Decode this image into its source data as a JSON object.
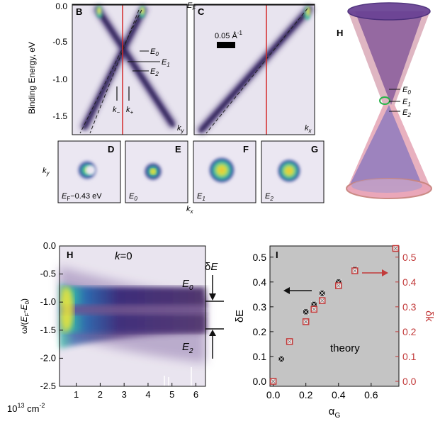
{
  "top": {
    "ylabel": "Binding Energy, eV",
    "ef_label": "E",
    "ef_sub": "F",
    "yticks": [
      "0.0",
      "-0.5",
      "-1.0",
      "-1.5"
    ],
    "panel_B": {
      "title": "B",
      "kaxis": "k",
      "kaxis_sub": "y",
      "levels": [
        {
          "main": "E",
          "sub": "0"
        },
        {
          "main": "E",
          "sub": "1"
        },
        {
          "main": "E",
          "sub": "2"
        }
      ],
      "kminus": {
        "main": "k",
        "sub": "−"
      },
      "kplus": {
        "main": "k",
        "sub": "+"
      }
    },
    "panel_C": {
      "title": "C",
      "kaxis": "k",
      "kaxis_sub": "x",
      "scalebar": "0.05 Å",
      "scalebar_sup": "-1"
    },
    "panel_H": {
      "title": "H",
      "levels": [
        {
          "main": "E",
          "sub": "0"
        },
        {
          "main": "E",
          "sub": "1"
        },
        {
          "main": "E",
          "sub": "2"
        }
      ]
    }
  },
  "maps": {
    "ylabel": "k",
    "ylabel_sub": "y",
    "xlabel": "k",
    "xlabel_sub": "x",
    "panels": [
      {
        "title": "D",
        "label_main": "E",
        "label_sub": "F",
        "label_rest": "−0.43 eV"
      },
      {
        "title": "E",
        "label_main": "E",
        "label_sub": "0",
        "label_rest": ""
      },
      {
        "title": "F",
        "label_main": "E",
        "label_sub": "1",
        "label_rest": ""
      },
      {
        "title": "G",
        "label_main": "E",
        "label_sub": "2",
        "label_rest": ""
      }
    ]
  },
  "bottom_left": {
    "title": "H",
    "k_label": "k",
    "k_value": "=0",
    "ylabel": "ω/(E",
    "ylabel_full": "ω/(EF-E0)",
    "xunit": "10",
    "xunit_sup": "13",
    "xunit_rest": " cm",
    "xunit_sup2": "-2",
    "delta_label": "δE",
    "E0_label": {
      "main": "E",
      "sub": "0"
    },
    "E2_label": {
      "main": "E",
      "sub": "2"
    },
    "yticks": [
      "0.0",
      "-0.5",
      "-1.0",
      "-1.5",
      "-2.0",
      "-2.5"
    ],
    "xticks": [
      "1",
      "2",
      "3",
      "4",
      "5",
      "6"
    ],
    "color_low": "#4b2a6e",
    "color_high": "#f4ee3a"
  },
  "chart_data": {
    "type": "scatter",
    "title": "I",
    "annotation": "theory",
    "xlabel": "α",
    "xlabel_sub": "G",
    "ylabel": "δE",
    "y2label": "δk",
    "xlim": [
      -0.02,
      0.77
    ],
    "ylim": [
      -0.02,
      0.545
    ],
    "xticks": [
      "0.0",
      "0.2",
      "0.4",
      "0.6"
    ],
    "yticks": [
      "0.0",
      "0.1",
      "0.2",
      "0.3",
      "0.4",
      "0.5"
    ],
    "y2ticks": [
      "0.0",
      "0.1",
      "0.2",
      "0.3",
      "0.4",
      "0.5"
    ],
    "background": "#c4c4c4",
    "series": [
      {
        "name": "δE",
        "color": "#111111",
        "x": [
          0.0,
          0.05,
          0.1,
          0.2,
          0.25,
          0.3,
          0.4,
          0.5
        ],
        "values": [
          0.0,
          0.09,
          0.16,
          0.28,
          0.31,
          0.355,
          0.4,
          0.45
        ]
      },
      {
        "name": "δk",
        "color": "#c23a3a",
        "x": [
          0.0,
          0.1,
          0.2,
          0.25,
          0.3,
          0.4,
          0.5,
          0.75
        ],
        "values": [
          0.0,
          0.16,
          0.24,
          0.29,
          0.325,
          0.385,
          0.445,
          0.535
        ]
      }
    ]
  }
}
